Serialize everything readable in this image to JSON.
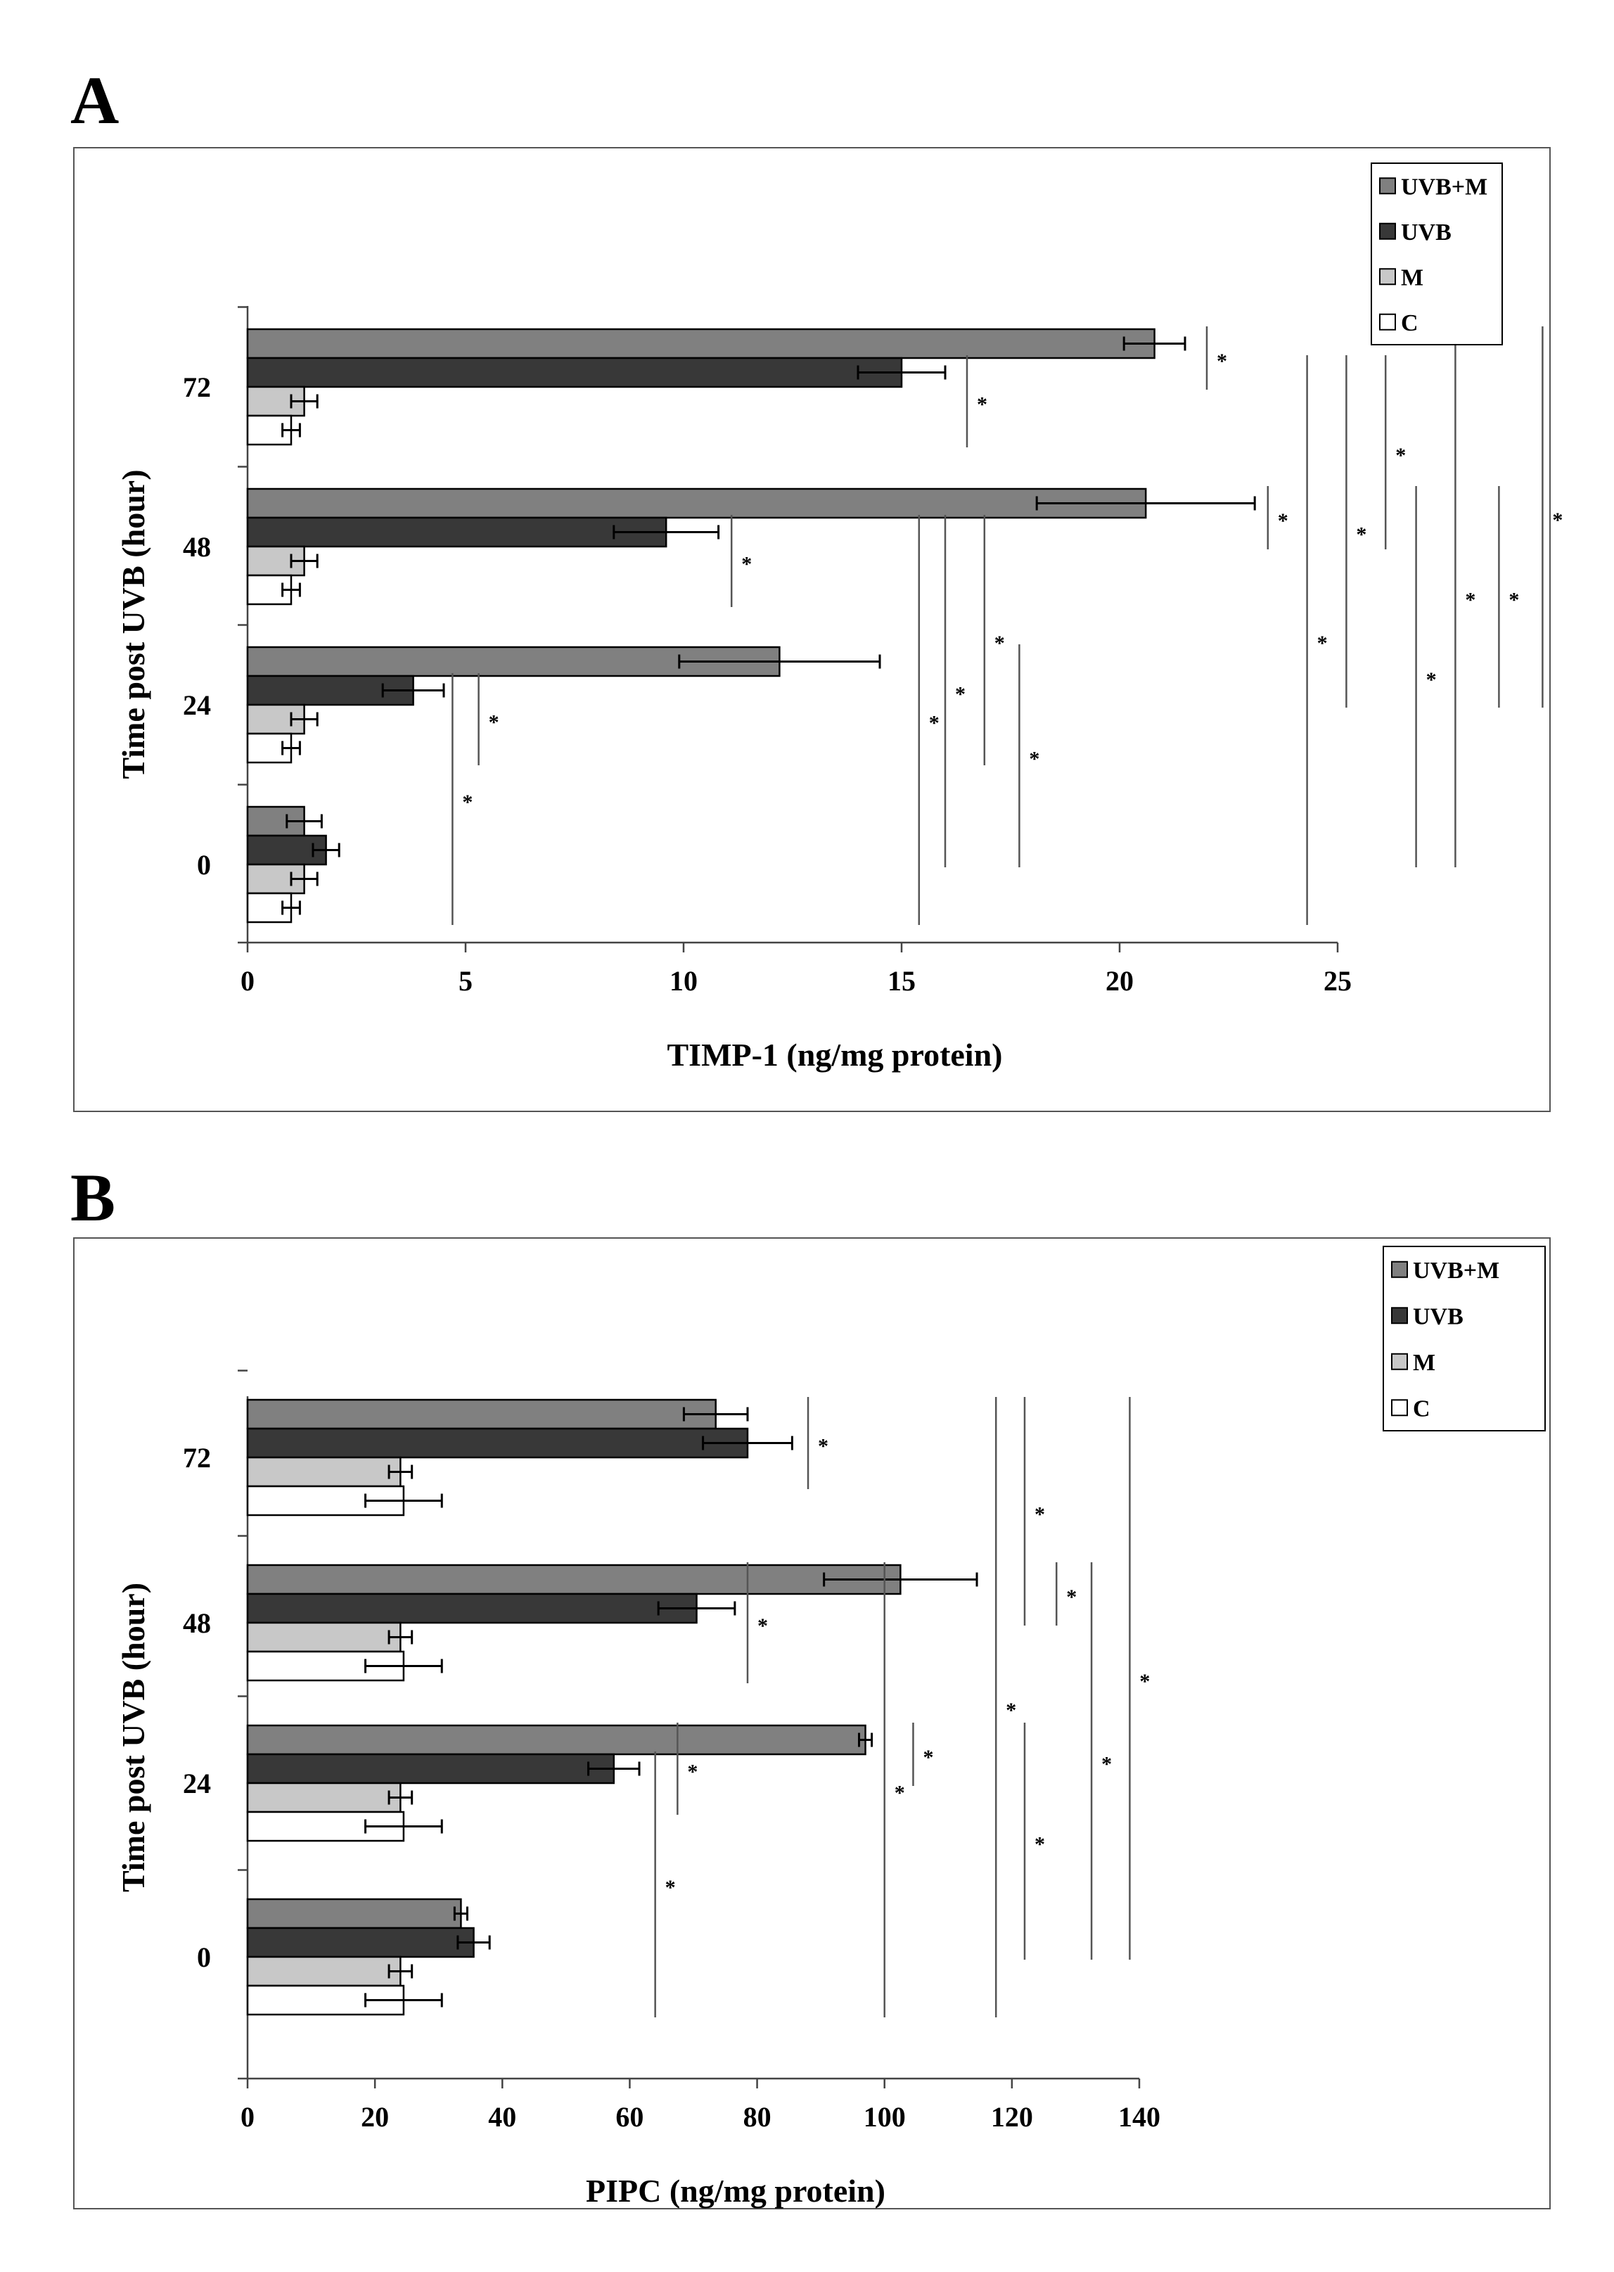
{
  "figure": {
    "panels": [
      {
        "letter": "A",
        "chart_data": {
          "type": "bar",
          "orientation": "horizontal",
          "ylabel": "Time post UVB (hour)",
          "xlabel": "TIMP-1 (ng/mg protein)",
          "xlim": [
            0,
            25
          ],
          "xticks": [
            "0",
            "5",
            "10",
            "15",
            "20",
            "25"
          ],
          "categories": [
            "0",
            "24",
            "48",
            "72"
          ],
          "legend_position": "top-right",
          "series": [
            {
              "name": "UVB+M",
              "color": "#808080",
              "values": [
                1.3,
                12.2,
                20.6,
                20.8
              ],
              "errors": [
                0.4,
                2.3,
                2.5,
                0.7
              ]
            },
            {
              "name": "UVB",
              "color": "#383838",
              "values": [
                1.8,
                3.8,
                9.6,
                15.0
              ],
              "errors": [
                0.3,
                0.7,
                1.2,
                1.0
              ]
            },
            {
              "name": "M",
              "color": "#c8c8c8",
              "values": [
                1.3,
                1.3,
                1.3,
                1.3
              ],
              "errors": [
                0.3,
                0.3,
                0.3,
                0.3
              ]
            },
            {
              "name": "C",
              "color": "#ffffff",
              "values": [
                1.0,
                1.0,
                1.0,
                1.0
              ],
              "errors": [
                0.2,
                0.2,
                0.2,
                0.2
              ]
            }
          ],
          "significance": [
            {
              "x": 22.0,
              "from": "72.UVB+M",
              "to": "72.UVB",
              "label": "*"
            },
            {
              "x": 16.5,
              "from": "72.UVB",
              "to": "72.C",
              "label": "*"
            },
            {
              "x": 23.4,
              "from": "48.UVB+M",
              "to": "48.UVB",
              "label": "*"
            },
            {
              "x": 11.1,
              "from": "48.UVB",
              "to": "48.C",
              "label": "*"
            },
            {
              "x": 5.3,
              "from": "24.UVB",
              "to": "24.C",
              "label": "*"
            },
            {
              "x": 4.7,
              "from": "24.UVB",
              "to": "0.C",
              "label": "*"
            },
            {
              "x": 15.4,
              "from": "48.UVB",
              "to": "0.C",
              "label": "*"
            },
            {
              "x": 16.0,
              "from": "48.UVB",
              "to": "0.UVB",
              "label": "*"
            },
            {
              "x": 16.9,
              "from": "48.UVB",
              "to": "24.C",
              "label": "*"
            },
            {
              "x": 17.7,
              "from": "24.UVB+M",
              "to": "0.UVB",
              "label": "*"
            },
            {
              "x": 24.3,
              "from": "72.UVB",
              "to": "0.C",
              "label": "*"
            },
            {
              "x": 25.2,
              "from": "72.UVB",
              "to": "24.UVB",
              "label": "*"
            },
            {
              "x": 26.1,
              "from": "72.UVB",
              "to": "48.UVB",
              "label": "*"
            },
            {
              "x": 26.8,
              "from": "48.UVB+M",
              "to": "0.UVB",
              "label": "*"
            },
            {
              "x": 27.7,
              "from": "72.UVB+M",
              "to": "0.UVB",
              "label": "*"
            },
            {
              "x": 28.7,
              "from": "48.UVB+M",
              "to": "24.UVB",
              "label": "*"
            },
            {
              "x": 29.7,
              "from": "72.UVB+M",
              "to": "24.UVB",
              "label": "*"
            }
          ]
        }
      },
      {
        "letter": "B",
        "chart_data": {
          "type": "bar",
          "orientation": "horizontal",
          "ylabel": "Time post UVB (hour)",
          "xlabel": "PIPC (ng/mg protein)",
          "xlim": [
            0,
            140
          ],
          "xticks": [
            "0",
            "20",
            "40",
            "60",
            "80",
            "100",
            "120",
            "140"
          ],
          "categories": [
            "0",
            "24",
            "48",
            "72"
          ],
          "legend_position": "top-right",
          "series": [
            {
              "name": "UVB+M",
              "color": "#808080",
              "values": [
                33.5,
                97.0,
                102.5,
                73.5
              ],
              "errors": [
                1.0,
                1.0,
                12.0,
                5.0
              ]
            },
            {
              "name": "UVB",
              "color": "#383838",
              "values": [
                35.5,
                57.5,
                70.5,
                78.5
              ],
              "errors": [
                2.5,
                4.0,
                6.0,
                7.0
              ]
            },
            {
              "name": "M",
              "color": "#c8c8c8",
              "values": [
                24.0,
                24.0,
                24.0,
                24.0
              ],
              "errors": [
                1.8,
                1.8,
                1.8,
                1.8
              ]
            },
            {
              "name": "C",
              "color": "#ffffff",
              "values": [
                24.5,
                24.5,
                24.5,
                24.5
              ],
              "errors": [
                6.0,
                6.0,
                6.0,
                6.0
              ]
            }
          ],
          "significance": [
            {
              "x": 88.0,
              "from": "72.UVB+M",
              "to": "72.M",
              "label": "*"
            },
            {
              "x": 78.5,
              "from": "48.UVB+M",
              "to": "48.C",
              "label": "*"
            },
            {
              "x": 67.5,
              "from": "24.UVB+M",
              "to": "24.M",
              "label": "*"
            },
            {
              "x": 64.0,
              "from": "24.UVB",
              "to": "0.C",
              "label": "*"
            },
            {
              "x": 100.0,
              "from": "48.UVB+M",
              "to": "0.C",
              "label": "*"
            },
            {
              "x": 104.5,
              "from": "24.UVB+M",
              "to": "24.UVB",
              "label": "*"
            },
            {
              "x": 117.5,
              "from": "72.UVB+M",
              "to": "0.C",
              "label": "*"
            },
            {
              "x": 122.0,
              "from": "72.UVB+M",
              "to": "48.UVB",
              "label": "*"
            },
            {
              "x": 127.0,
              "from": "48.UVB+M",
              "to": "48.UVB",
              "label": "*"
            },
            {
              "x": 122.0,
              "from": "24.UVB+M",
              "to": "0.UVB",
              "label": "*"
            },
            {
              "x": 132.5,
              "from": "48.UVB+M",
              "to": "0.UVB",
              "label": "*"
            },
            {
              "x": 138.5,
              "from": "72.UVB+M",
              "to": "0.UVB",
              "label": "*"
            }
          ]
        }
      }
    ]
  }
}
